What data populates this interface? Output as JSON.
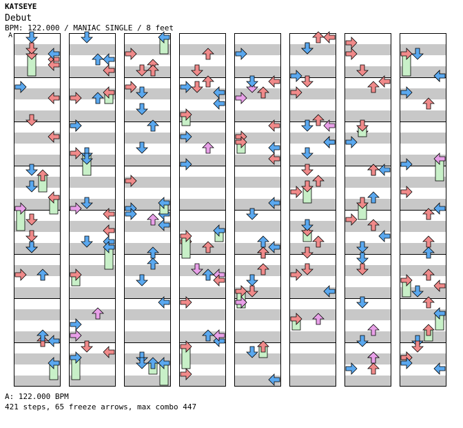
{
  "header": {
    "artist": "KATSEYE",
    "title": "Debut",
    "meta": "BPM: 122.000 / MANIAC SINGLE / 8 feet"
  },
  "chart": {
    "bpm_marker": "A",
    "columns": 8,
    "measures_per_column": 8,
    "lanes": [
      "left",
      "down",
      "up",
      "right"
    ],
    "colors": {
      "quarter": "#f08a8a",
      "eighth": "#5aa8ef",
      "sixteenth": "#e8a0e8",
      "freeze": "#c8f0c8",
      "stripe": "#c8c8c8",
      "border": "#000000"
    }
  },
  "footer": {
    "bpm_note": "A: 122.000 BPM",
    "stats": "421 steps, 65 freeze arrows, max combo 447"
  }
}
